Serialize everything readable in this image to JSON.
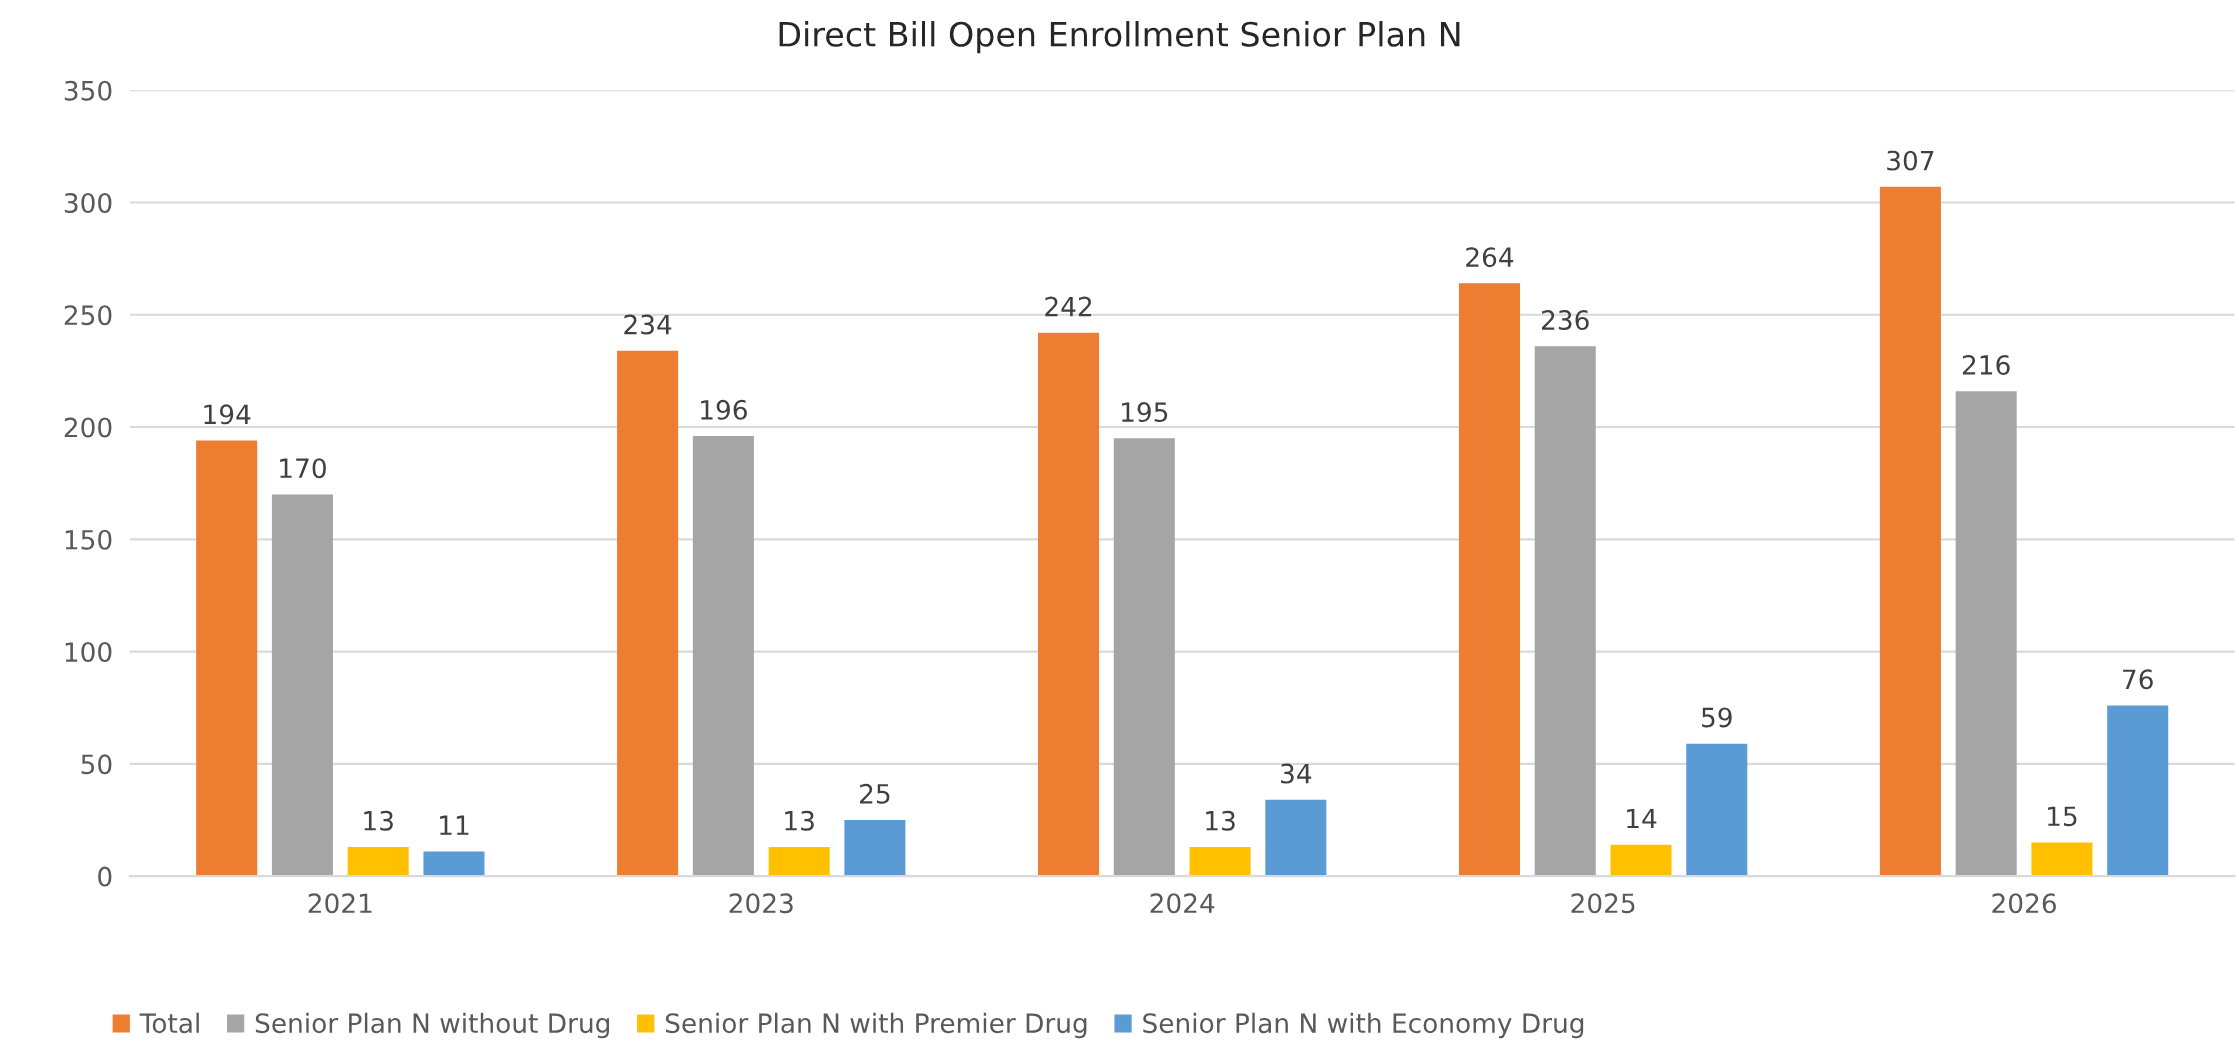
{
  "chart_data": {
    "type": "bar",
    "title": "Direct Bill Open Enrollment Senior Plan N",
    "categories": [
      "2021",
      "2023",
      "2024",
      "2025",
      "2026"
    ],
    "series": [
      {
        "name": "Total",
        "color": "#ed7d31",
        "values": [
          194,
          234,
          242,
          264,
          307
        ]
      },
      {
        "name": "Senior Plan N without Drug",
        "color": "#a5a5a5",
        "values": [
          170,
          196,
          195,
          236,
          216
        ]
      },
      {
        "name": "Senior Plan N with Premier Drug",
        "color": "#ffc000",
        "values": [
          13,
          13,
          13,
          14,
          15
        ]
      },
      {
        "name": "Senior Plan N with Economy Drug",
        "color": "#5b9bd5",
        "values": [
          11,
          25,
          34,
          59,
          76
        ]
      }
    ],
    "ylim": [
      0,
      350
    ],
    "yticks": [
      0,
      50,
      100,
      150,
      200,
      250,
      300,
      350
    ],
    "grid": "y",
    "legend": "bottom left",
    "data_labels": true
  }
}
